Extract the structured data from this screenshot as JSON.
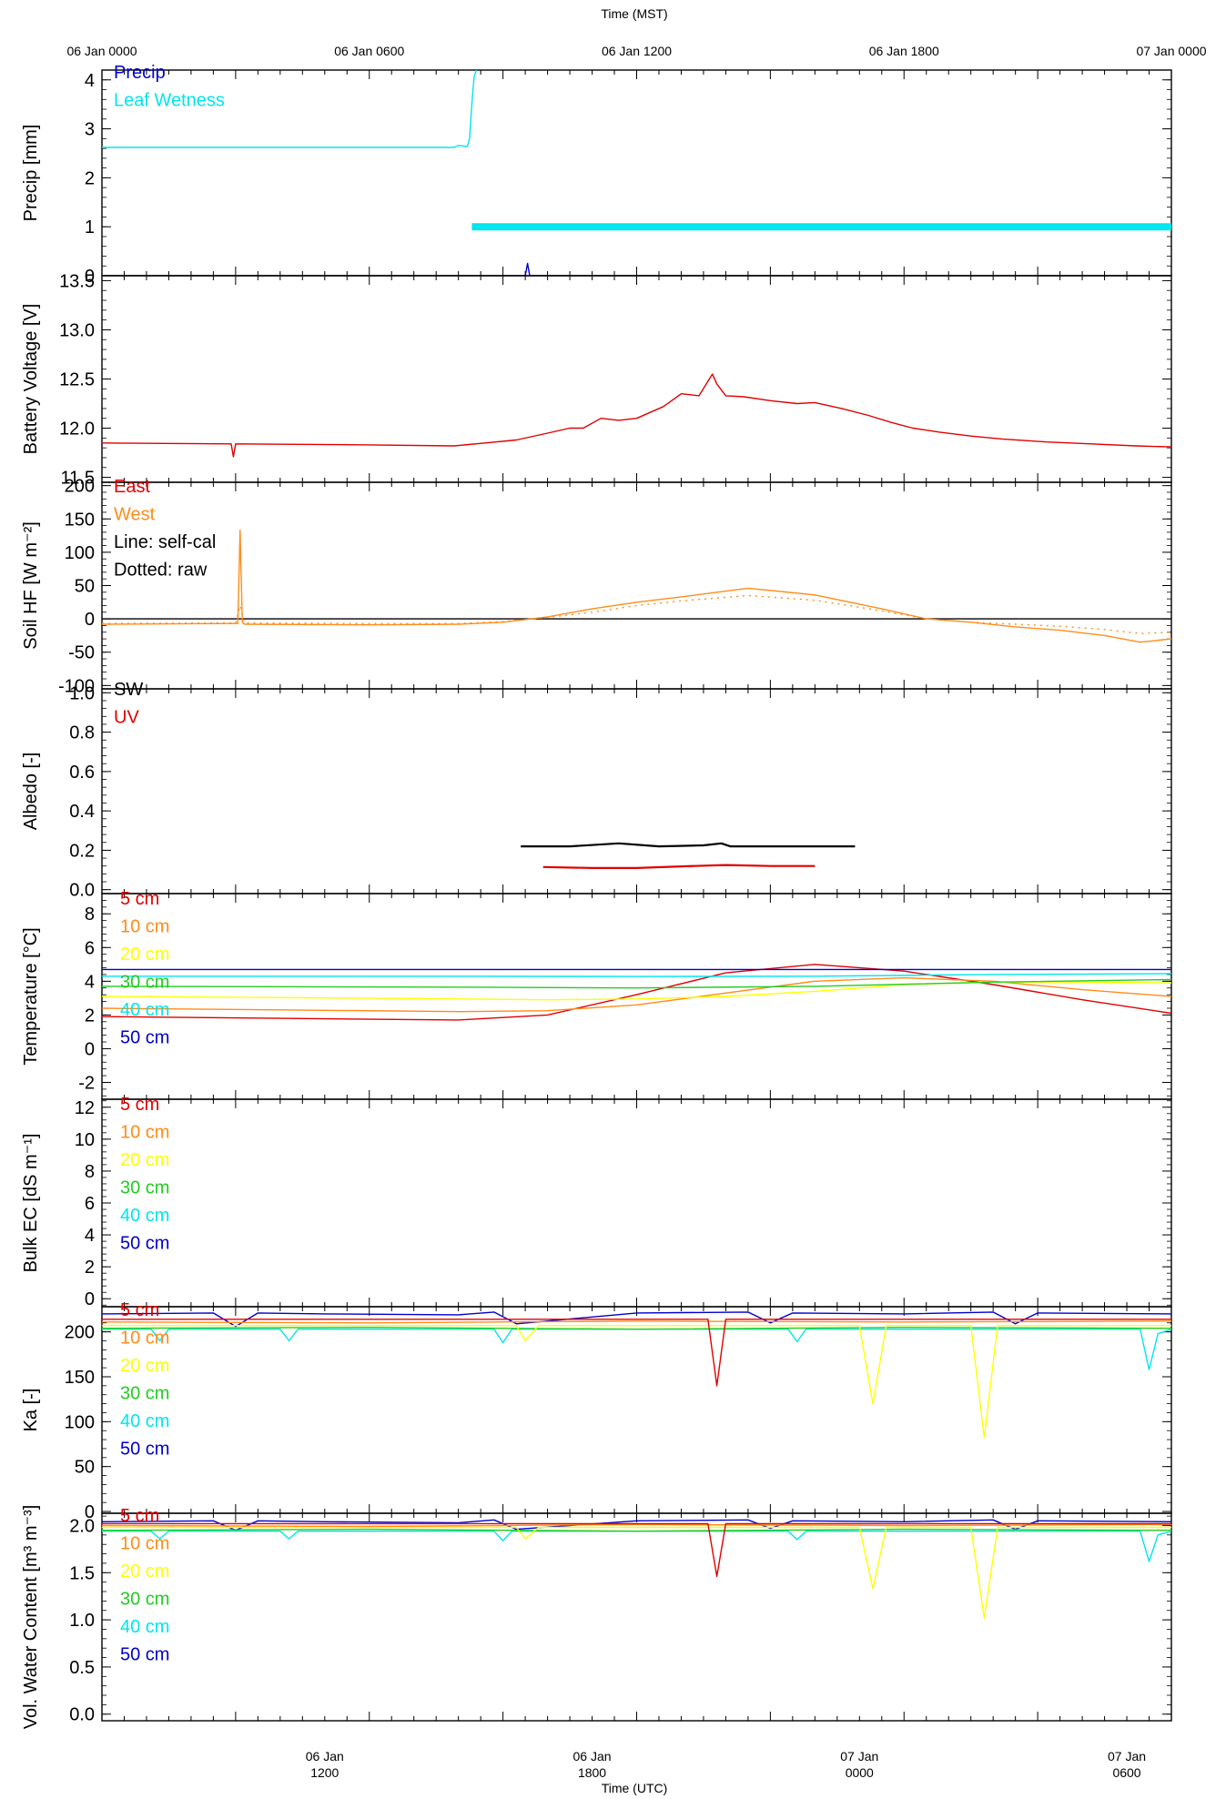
{
  "figure": {
    "top_axis_title": "Time (MST)",
    "bottom_axis_title": "Time (UTC)",
    "top_ticks": [
      "06 Jan 0000",
      "06 Jan 0600",
      "06 Jan 1200",
      "06 Jan 1800",
      "07 Jan 0000"
    ],
    "bottom_ticks": [
      {
        "line1": "06 Jan",
        "line2": "1200"
      },
      {
        "line1": "06 Jan",
        "line2": "1800"
      },
      {
        "line1": "07 Jan",
        "line2": "0000"
      },
      {
        "line1": "07 Jan",
        "line2": "0600"
      }
    ]
  },
  "chart_data": [
    {
      "type": "line",
      "ylabel": "Precip [mm]",
      "ylim": [
        0,
        4.2
      ],
      "yticks": [
        0,
        1,
        2,
        3,
        4
      ],
      "legend": [
        {
          "label": "Precip",
          "color": "#0000cc"
        },
        {
          "label": "Leaf Wetness",
          "color": "#00e5ee"
        }
      ],
      "x_unit": "hours MST from 06 Jan 0000",
      "series": [
        {
          "name": "Precip",
          "color": "#0000cc",
          "x": [
            0,
            9.5,
            9.55,
            9.6,
            24
          ],
          "y": [
            0,
            0,
            0.25,
            0,
            0
          ]
        },
        {
          "name": "Leaf Wetness",
          "color": "#00e5ee",
          "x": [
            0,
            7.9,
            8.0,
            8.2,
            8.25,
            8.3,
            8.35,
            8.4
          ],
          "y": [
            2.62,
            2.62,
            2.66,
            2.64,
            2.8,
            3.5,
            4.05,
            4.2
          ]
        },
        {
          "name": "Leaf Wetness (wet flag)",
          "color": "#00e5ee",
          "x": [
            8.3,
            24
          ],
          "y": [
            1,
            1
          ]
        }
      ]
    },
    {
      "type": "line",
      "ylabel": "Battery Voltage [V]",
      "ylim": [
        11.45,
        13.55
      ],
      "yticks": [
        11.5,
        12.0,
        12.5,
        13.0,
        13.5
      ],
      "ytick_labels": [
        "11.5",
        "12.0",
        "12.5",
        "13.0",
        "13.5"
      ],
      "x_unit": "hours MST from 06 Jan 0000",
      "series": [
        {
          "name": "Battery Voltage",
          "color": "#e00000",
          "x": [
            0,
            2.9,
            2.95,
            3.0,
            6,
            7.9,
            8.6,
            9.3,
            10.0,
            10.5,
            10.8,
            11.2,
            11.6,
            12.0,
            12.6,
            13.0,
            13.4,
            13.7,
            13.8,
            14.0,
            14.4,
            15.0,
            15.6,
            16.0,
            16.6,
            17.2,
            17.7,
            18.2,
            18.8,
            19.5,
            20.2,
            21.2,
            22.2,
            23.2,
            24.0
          ],
          "y": [
            11.85,
            11.84,
            11.71,
            11.84,
            11.83,
            11.82,
            11.85,
            11.88,
            11.95,
            12.0,
            12.0,
            12.1,
            12.08,
            12.1,
            12.22,
            12.35,
            12.33,
            12.55,
            12.45,
            12.33,
            12.32,
            12.28,
            12.25,
            12.26,
            12.2,
            12.13,
            12.06,
            12.0,
            11.96,
            11.92,
            11.89,
            11.86,
            11.84,
            11.82,
            11.81
          ]
        }
      ]
    },
    {
      "type": "line",
      "ylabel": "Soil HF [W m⁻²]",
      "ylim": [
        -105,
        205
      ],
      "yticks": [
        -100,
        -50,
        0,
        50,
        100,
        150,
        200
      ],
      "legend": [
        {
          "label": "East",
          "color": "#e00000"
        },
        {
          "label": "West",
          "color": "#ff8c1a"
        },
        {
          "label": "Line: self-cal",
          "color": "#000000"
        },
        {
          "label": "Dotted: raw",
          "color": "#000000"
        }
      ],
      "x_unit": "hours MST from 06 Jan 0000",
      "series": [
        {
          "name": "Zero line",
          "color": "#000000",
          "x": [
            0,
            24
          ],
          "y": [
            0,
            0
          ]
        },
        {
          "name": "West self-cal",
          "color": "#ff8c1a",
          "x": [
            0,
            3.05,
            3.1,
            3.15,
            3.2,
            3.3,
            6,
            8,
            9,
            10,
            11,
            12,
            13,
            14.5,
            16,
            17.5,
            18.5,
            19.5,
            20.5,
            21.5,
            22.5,
            23.3,
            24
          ],
          "y": [
            -8,
            -7,
            133,
            -5,
            -8,
            -8,
            -9,
            -8,
            -5,
            3,
            15,
            25,
            33,
            46,
            36,
            15,
            0,
            -5,
            -12,
            -17,
            -25,
            -35,
            -30
          ]
        },
        {
          "name": "West raw",
          "color": "#ff8c1a",
          "dotted": true,
          "x": [
            0,
            3.0,
            3.1,
            3.2,
            6,
            8,
            9,
            10,
            11,
            12,
            13,
            14.5,
            16,
            17.5,
            18.5,
            19.5,
            20.5,
            21.5,
            22.5,
            23.3,
            24
          ],
          "y": [
            -7,
            -6,
            20,
            -6,
            -7,
            -7,
            -4,
            2,
            10,
            20,
            27,
            35,
            28,
            12,
            0,
            -5,
            -8,
            -11,
            -16,
            -22,
            -20
          ]
        }
      ]
    },
    {
      "type": "line",
      "ylabel": "Albedo [-]",
      "ylim": [
        -0.02,
        1.02
      ],
      "yticks": [
        0.0,
        0.2,
        0.4,
        0.6,
        0.8,
        1.0
      ],
      "ytick_labels": [
        "0.0",
        "0.2",
        "0.4",
        "0.6",
        "0.8",
        "1.0"
      ],
      "legend": [
        {
          "label": "SW",
          "color": "#000000"
        },
        {
          "label": "UV",
          "color": "#e00000"
        }
      ],
      "x_unit": "hours MST from 06 Jan 0000",
      "series": [
        {
          "name": "SW",
          "color": "#000000",
          "x": [
            9.4,
            10.5,
            11.6,
            12.5,
            13.5,
            13.9,
            14.1,
            15.0,
            16.0,
            16.9
          ],
          "y": [
            0.22,
            0.22,
            0.235,
            0.22,
            0.225,
            0.235,
            0.22,
            0.22,
            0.22,
            0.22
          ]
        },
        {
          "name": "UV",
          "color": "#e00000",
          "x": [
            9.9,
            11.0,
            12.0,
            13.0,
            14.0,
            15.0,
            16.0
          ],
          "y": [
            0.115,
            0.11,
            0.11,
            0.118,
            0.125,
            0.12,
            0.12
          ]
        }
      ]
    },
    {
      "type": "line",
      "ylabel": "Temperature [°C]",
      "ylim": [
        -3,
        9.2
      ],
      "yticks": [
        -2,
        0,
        2,
        4,
        6,
        8
      ],
      "legend": [
        {
          "label": "5 cm",
          "color": "#e00000"
        },
        {
          "label": "10 cm",
          "color": "#ff8c1a"
        },
        {
          "label": "20 cm",
          "color": "#ffff00"
        },
        {
          "label": "30 cm",
          "color": "#22cc22"
        },
        {
          "label": "40 cm",
          "color": "#00e5ee"
        },
        {
          "label": "50 cm",
          "color": "#0000cc"
        }
      ],
      "x_unit": "hours MST from 06 Jan 0000",
      "series": [
        {
          "name": "5 cm",
          "color": "#e00000",
          "x": [
            0,
            4,
            8,
            10,
            12,
            14,
            16,
            18,
            20,
            22,
            24
          ],
          "y": [
            1.9,
            1.8,
            1.7,
            2.0,
            3.2,
            4.5,
            5.0,
            4.6,
            3.8,
            2.9,
            2.1
          ]
        },
        {
          "name": "10 cm",
          "color": "#ff8c1a",
          "x": [
            0,
            4,
            8,
            10,
            12,
            14,
            16,
            18,
            20,
            22,
            24
          ],
          "y": [
            2.4,
            2.3,
            2.2,
            2.25,
            2.6,
            3.3,
            4.0,
            4.2,
            4.0,
            3.5,
            3.1
          ]
        },
        {
          "name": "20 cm",
          "color": "#ffff00",
          "x": [
            0,
            6,
            10,
            12,
            14,
            16,
            18,
            20,
            22,
            24
          ],
          "y": [
            3.1,
            3.0,
            2.9,
            2.95,
            3.1,
            3.4,
            3.8,
            3.95,
            3.95,
            3.9
          ]
        },
        {
          "name": "30 cm",
          "color": "#22cc22",
          "x": [
            0,
            8,
            12,
            16,
            20,
            24
          ],
          "y": [
            3.7,
            3.65,
            3.6,
            3.7,
            3.95,
            4.1
          ]
        },
        {
          "name": "40 cm",
          "color": "#00e5ee",
          "x": [
            0,
            8,
            12,
            16,
            20,
            24
          ],
          "y": [
            4.3,
            4.3,
            4.28,
            4.3,
            4.4,
            4.45
          ]
        },
        {
          "name": "50 cm",
          "color": "#0000cc",
          "x": [
            0,
            24
          ],
          "y": [
            4.7,
            4.7
          ]
        }
      ]
    },
    {
      "type": "line",
      "ylabel": "Bulk EC [dS m⁻¹]",
      "ylim": [
        -0.5,
        12.5
      ],
      "yticks": [
        0,
        2,
        4,
        6,
        8,
        10,
        12
      ],
      "legend": [
        {
          "label": "5 cm",
          "color": "#e00000"
        },
        {
          "label": "10 cm",
          "color": "#ff8c1a"
        },
        {
          "label": "20 cm",
          "color": "#ffff00"
        },
        {
          "label": "30 cm",
          "color": "#22cc22"
        },
        {
          "label": "40 cm",
          "color": "#00e5ee"
        },
        {
          "label": "50 cm",
          "color": "#0000cc"
        }
      ],
      "series": []
    },
    {
      "type": "line",
      "ylabel": "Ka [-]",
      "ylim": [
        -2,
        228
      ],
      "yticks": [
        0,
        50,
        100,
        150,
        200
      ],
      "legend": [
        {
          "label": "5 cm",
          "color": "#e00000"
        },
        {
          "label": "10 cm",
          "color": "#ff8c1a"
        },
        {
          "label": "20 cm",
          "color": "#ffff00"
        },
        {
          "label": "30 cm",
          "color": "#22cc22"
        },
        {
          "label": "40 cm",
          "color": "#00e5ee"
        },
        {
          "label": "50 cm",
          "color": "#0000cc"
        }
      ],
      "x_unit": "hours MST from 06 Jan 0000",
      "series": [
        {
          "name": "50 cm",
          "color": "#0000cc",
          "x": [
            0,
            2.5,
            3.0,
            3.5,
            5,
            8,
            8.8,
            9.3,
            12,
            14.5,
            15.0,
            15.5,
            18,
            20,
            20.5,
            21,
            24
          ],
          "y": [
            220,
            221,
            206,
            221,
            220,
            219,
            222,
            209,
            221,
            222,
            210,
            221,
            220,
            222,
            209,
            221,
            220
          ]
        },
        {
          "name": "40 cm",
          "color": "#00e5ee",
          "x": [
            0,
            1.1,
            1.3,
            1.5,
            4.0,
            4.2,
            4.4,
            8.8,
            9.0,
            9.2,
            15.4,
            15.6,
            15.8,
            23.3,
            23.5,
            23.7,
            24
          ],
          "y": [
            203,
            203,
            190,
            203,
            203,
            190,
            203,
            203,
            188,
            203,
            203,
            189,
            203,
            203,
            158,
            198,
            203
          ]
        },
        {
          "name": "30 cm",
          "color": "#22cc22",
          "x": [
            0,
            6,
            12,
            18,
            24
          ],
          "y": [
            204,
            205,
            203,
            205,
            204
          ]
        },
        {
          "name": "20 cm",
          "color": "#ffff00",
          "x": [
            0,
            9.3,
            9.5,
            9.8,
            17.0,
            17.3,
            17.6,
            19.5,
            19.8,
            20.1,
            24
          ],
          "y": [
            207,
            207,
            190,
            207,
            207,
            120,
            207,
            207,
            82,
            207,
            207
          ]
        },
        {
          "name": "10 cm",
          "color": "#ff8c1a",
          "x": [
            0,
            6,
            12,
            18,
            24
          ],
          "y": [
            211,
            210,
            212,
            211,
            212
          ]
        },
        {
          "name": "5 cm",
          "color": "#e00000",
          "x": [
            0,
            13.6,
            13.8,
            14.0,
            24
          ],
          "y": [
            214,
            214,
            140,
            214,
            214
          ]
        }
      ]
    },
    {
      "type": "line",
      "ylabel": "Vol. Water Content [m³ m⁻³]",
      "ylim": [
        -0.07,
        2.13
      ],
      "yticks": [
        0.0,
        0.5,
        1.0,
        1.5,
        2.0
      ],
      "ytick_labels": [
        "0.0",
        "0.5",
        "1.0",
        "1.5",
        "2.0"
      ],
      "legend": [
        {
          "label": "5 cm",
          "color": "#e00000"
        },
        {
          "label": "10 cm",
          "color": "#ff8c1a"
        },
        {
          "label": "20 cm",
          "color": "#ffff00"
        },
        {
          "label": "30 cm",
          "color": "#22cc22"
        },
        {
          "label": "40 cm",
          "color": "#00e5ee"
        },
        {
          "label": "50 cm",
          "color": "#0000cc"
        }
      ],
      "x_unit": "hours MST from 06 Jan 0000",
      "series": [
        {
          "name": "50 cm",
          "color": "#0000cc",
          "x": [
            0,
            2.5,
            3.0,
            3.5,
            5,
            8,
            8.8,
            9.3,
            12,
            14.5,
            15.0,
            15.5,
            18,
            20,
            20.5,
            21,
            24
          ],
          "y": [
            2.04,
            2.05,
            1.95,
            2.05,
            2.04,
            2.03,
            2.06,
            1.96,
            2.05,
            2.06,
            1.97,
            2.05,
            2.04,
            2.06,
            1.96,
            2.05,
            2.04
          ]
        },
        {
          "name": "40 cm",
          "color": "#00e5ee",
          "x": [
            0,
            1.1,
            1.3,
            1.5,
            4.0,
            4.2,
            4.4,
            8.8,
            9.0,
            9.2,
            15.4,
            15.6,
            15.8,
            23.3,
            23.5,
            23.7,
            24
          ],
          "y": [
            1.94,
            1.94,
            1.86,
            1.94,
            1.94,
            1.86,
            1.94,
            1.94,
            1.84,
            1.94,
            1.94,
            1.85,
            1.94,
            1.94,
            1.62,
            1.9,
            1.94
          ]
        },
        {
          "name": "30 cm",
          "color": "#22cc22",
          "x": [
            0,
            6,
            12,
            18,
            24
          ],
          "y": [
            1.95,
            1.96,
            1.94,
            1.96,
            1.95
          ]
        },
        {
          "name": "20 cm",
          "color": "#ffff00",
          "x": [
            0,
            9.3,
            9.5,
            9.8,
            17.0,
            17.3,
            17.6,
            19.5,
            19.8,
            20.1,
            24
          ],
          "y": [
            1.98,
            1.98,
            1.86,
            1.98,
            1.98,
            1.33,
            1.98,
            1.98,
            1.02,
            1.98,
            1.98
          ]
        },
        {
          "name": "10 cm",
          "color": "#ff8c1a",
          "x": [
            0,
            6,
            12,
            18,
            24
          ],
          "y": [
            2.0,
            1.99,
            2.01,
            2.0,
            2.01
          ]
        },
        {
          "name": "5 cm",
          "color": "#e00000",
          "x": [
            0,
            13.6,
            13.8,
            14.0,
            24
          ],
          "y": [
            2.02,
            2.02,
            1.46,
            2.02,
            2.02
          ]
        }
      ]
    }
  ]
}
